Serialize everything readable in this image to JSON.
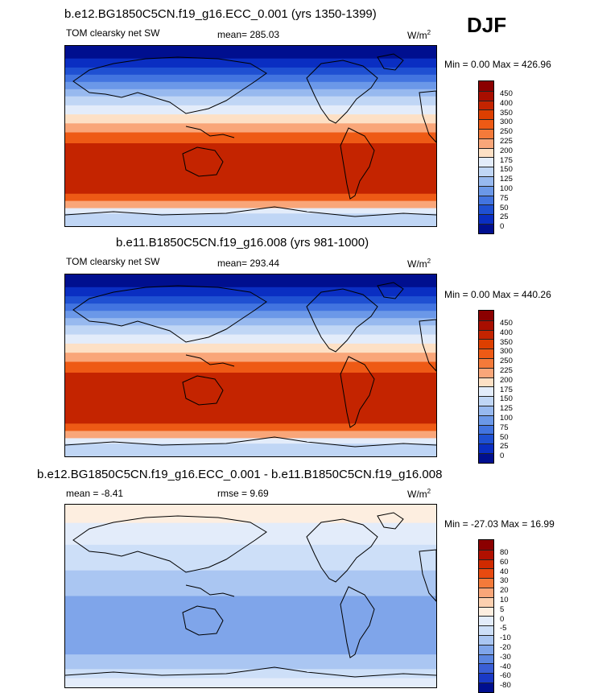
{
  "season": "DJF",
  "panels": [
    {
      "title": "b.e12.BG1850C5CN.f19_g16.ECC_0.001 (yrs 1350-1399)",
      "variable": "TOM clearsky net SW",
      "mean": "mean= 285.03",
      "units_base": "W/m",
      "units_exp": "2",
      "minmax": "Min =   0.00 Max = 426.96",
      "colorbar_labels": [
        "450",
        "400",
        "350",
        "300",
        "250",
        "225",
        "200",
        "175",
        "150",
        "125",
        "100",
        "75",
        "50",
        "25",
        "0"
      ]
    },
    {
      "title": "b.e11.B1850C5CN.f19_g16.008 (yrs 981-1000)",
      "variable": "TOM clearsky net SW",
      "mean": "mean= 293.44",
      "units_base": "W/m",
      "units_exp": "2",
      "minmax": "Min =   0.00 Max = 440.26",
      "colorbar_labels": [
        "450",
        "400",
        "350",
        "300",
        "250",
        "225",
        "200",
        "175",
        "150",
        "125",
        "100",
        "75",
        "50",
        "25",
        "0"
      ]
    },
    {
      "title": "b.e12.BG1850C5CN.f19_g16.ECC_0.001 - b.e11.B1850C5CN.f19_g16.008",
      "mean": "mean =  -8.41",
      "rmse": "rmse =   9.69",
      "units_base": "W/m",
      "units_exp": "2",
      "minmax": "Min = -27.03 Max =  16.99",
      "colorbar_labels": [
        "80",
        "60",
        "40",
        "30",
        "20",
        "10",
        "5",
        "0",
        "-5",
        "-10",
        "-20",
        "-30",
        "-40",
        "-60",
        "-80"
      ]
    }
  ],
  "colors": {
    "abs_scale": [
      "#8b0000",
      "#a80e00",
      "#c42400",
      "#dd3f00",
      "#ee5a15",
      "#f47a3a",
      "#f9a679",
      "#fde0c5",
      "#e3ecfa",
      "#c0d6f5",
      "#97b9ef",
      "#6b98e8",
      "#4274e0",
      "#1f50d2",
      "#0a2ec2",
      "#000f8f"
    ],
    "diff_scale": [
      "#8b0000",
      "#b01000",
      "#d02a00",
      "#e84a10",
      "#f47a3a",
      "#f9a679",
      "#fcd0b0",
      "#fdeee0",
      "#e3ecfa",
      "#cddff8",
      "#aac6f2",
      "#7fa5ea",
      "#5b86e1",
      "#3a5fd6",
      "#1a3ac6",
      "#000f8f"
    ]
  }
}
